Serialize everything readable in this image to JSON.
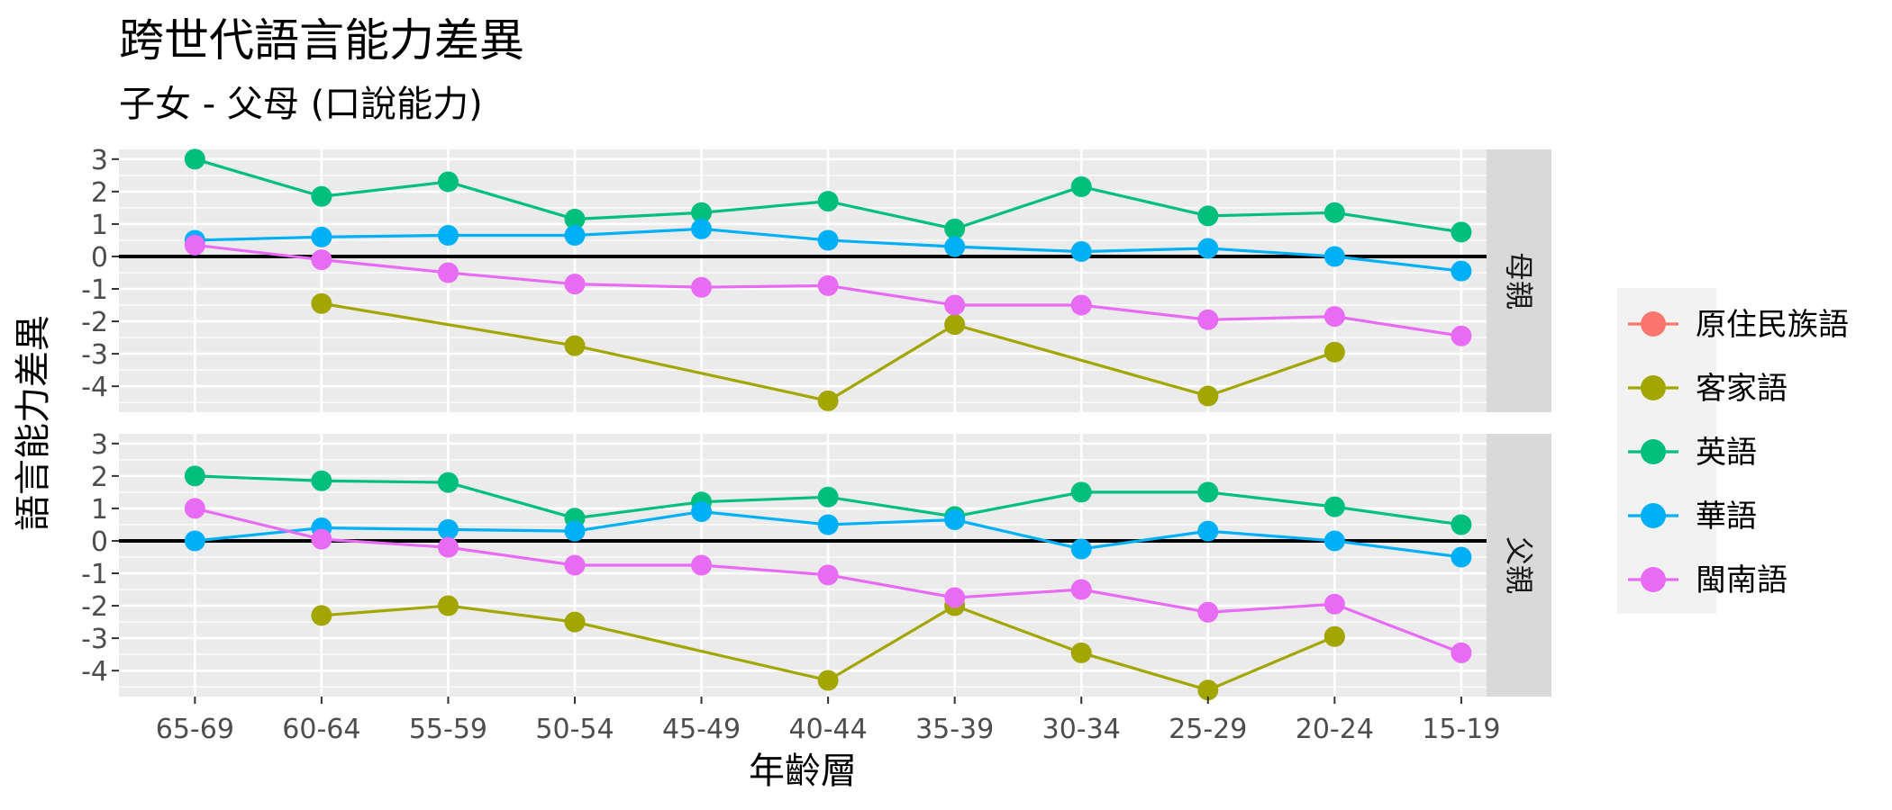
{
  "chart_data": {
    "type": "line",
    "title": "跨世代語言能力差異",
    "subtitle": "子女 - 父母 (口說能力)",
    "xlabel": "年齡層",
    "ylabel": "語言能力差異",
    "categories": [
      "65-69",
      "60-64",
      "55-59",
      "50-54",
      "45-49",
      "40-44",
      "35-39",
      "30-34",
      "25-29",
      "20-24",
      "15-19"
    ],
    "yticks": [
      3,
      2,
      1,
      0,
      -1,
      -2,
      -3,
      -4
    ],
    "ylim": [
      -4.8,
      3.3
    ],
    "reference_line": 0,
    "legend_position": "right",
    "series_names": [
      "原住民族語",
      "客家語",
      "英語",
      "華語",
      "閩南語"
    ],
    "colors": {
      "原住民族語": "#F8766D",
      "客家語": "#A3A500",
      "英語": "#00BF7D",
      "華語": "#00B0F6",
      "閩南語": "#E76BF3"
    },
    "panels": [
      {
        "label": "母親",
        "series": [
          {
            "name": "原住民族語",
            "values": [
              null,
              null,
              null,
              null,
              null,
              null,
              null,
              null,
              null,
              null,
              null
            ]
          },
          {
            "name": "客家語",
            "values": [
              null,
              -1.45,
              null,
              -2.75,
              null,
              -4.45,
              -2.1,
              null,
              -4.3,
              -2.95,
              null
            ]
          },
          {
            "name": "英語",
            "values": [
              3.0,
              1.85,
              2.3,
              1.15,
              1.35,
              1.7,
              0.85,
              2.15,
              1.25,
              1.35,
              0.75
            ]
          },
          {
            "name": "華語",
            "values": [
              0.5,
              0.6,
              0.65,
              0.65,
              0.85,
              0.5,
              0.3,
              0.15,
              0.25,
              0.0,
              -0.45
            ]
          },
          {
            "name": "閩南語",
            "values": [
              0.35,
              -0.1,
              -0.5,
              -0.85,
              -0.95,
              -0.9,
              -1.5,
              -1.5,
              -1.95,
              -1.85,
              -2.45
            ]
          }
        ]
      },
      {
        "label": "父親",
        "series": [
          {
            "name": "原住民族語",
            "values": [
              null,
              null,
              null,
              null,
              null,
              null,
              null,
              null,
              null,
              -2.95,
              null
            ]
          },
          {
            "name": "客家語",
            "values": [
              null,
              -2.3,
              -2.0,
              -2.5,
              null,
              -4.3,
              -2.0,
              -3.45,
              -4.6,
              -2.95,
              null
            ]
          },
          {
            "name": "英語",
            "values": [
              2.0,
              1.85,
              1.8,
              0.7,
              1.2,
              1.35,
              0.75,
              1.5,
              1.5,
              1.05,
              0.5
            ]
          },
          {
            "name": "華語",
            "values": [
              0.0,
              0.4,
              0.35,
              0.3,
              0.9,
              0.5,
              0.65,
              -0.25,
              0.3,
              0.0,
              -0.5
            ]
          },
          {
            "name": "閩南語",
            "values": [
              1.0,
              0.05,
              -0.2,
              -0.75,
              -0.75,
              -1.05,
              -1.75,
              -1.5,
              -2.2,
              -1.95,
              -3.45
            ]
          }
        ]
      }
    ]
  }
}
